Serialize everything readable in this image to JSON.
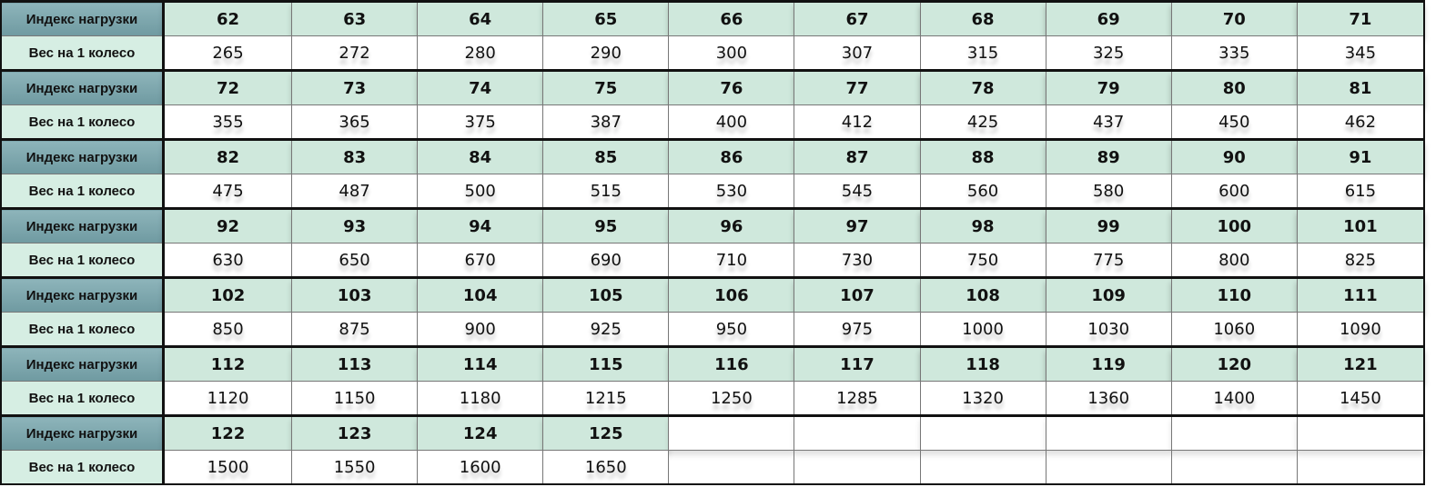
{
  "labels": {
    "index": "Индекс нагрузки",
    "weight": "Вес на 1 колесо"
  },
  "colors": {
    "index_label_bg": "#7fa8ae",
    "weight_label_bg": "#d6eee3",
    "index_cell_bg": "#cfe8dc",
    "weight_cell_bg": "#ffffff"
  },
  "blocks": [
    {
      "index": [
        "62",
        "63",
        "64",
        "65",
        "66",
        "67",
        "68",
        "69",
        "70",
        "71"
      ],
      "weight": [
        "265",
        "272",
        "280",
        "290",
        "300",
        "307",
        "315",
        "325",
        "335",
        "345"
      ]
    },
    {
      "index": [
        "72",
        "73",
        "74",
        "75",
        "76",
        "77",
        "78",
        "79",
        "80",
        "81"
      ],
      "weight": [
        "355",
        "365",
        "375",
        "387",
        "400",
        "412",
        "425",
        "437",
        "450",
        "462"
      ]
    },
    {
      "index": [
        "82",
        "83",
        "84",
        "85",
        "86",
        "87",
        "88",
        "89",
        "90",
        "91"
      ],
      "weight": [
        "475",
        "487",
        "500",
        "515",
        "530",
        "545",
        "560",
        "580",
        "600",
        "615"
      ]
    },
    {
      "index": [
        "92",
        "93",
        "94",
        "95",
        "96",
        "97",
        "98",
        "99",
        "100",
        "101"
      ],
      "weight": [
        "630",
        "650",
        "670",
        "690",
        "710",
        "730",
        "750",
        "775",
        "800",
        "825"
      ]
    },
    {
      "index": [
        "102",
        "103",
        "104",
        "105",
        "106",
        "107",
        "108",
        "109",
        "110",
        "111"
      ],
      "weight": [
        "850",
        "875",
        "900",
        "925",
        "950",
        "975",
        "1000",
        "1030",
        "1060",
        "1090"
      ]
    },
    {
      "index": [
        "112",
        "113",
        "114",
        "115",
        "116",
        "117",
        "118",
        "119",
        "120",
        "121"
      ],
      "weight": [
        "1120",
        "1150",
        "1180",
        "1215",
        "1250",
        "1285",
        "1320",
        "1360",
        "1400",
        "1450"
      ]
    },
    {
      "index": [
        "122",
        "123",
        "124",
        "125"
      ],
      "weight": [
        "1500",
        "1550",
        "1600",
        "1650"
      ]
    }
  ]
}
